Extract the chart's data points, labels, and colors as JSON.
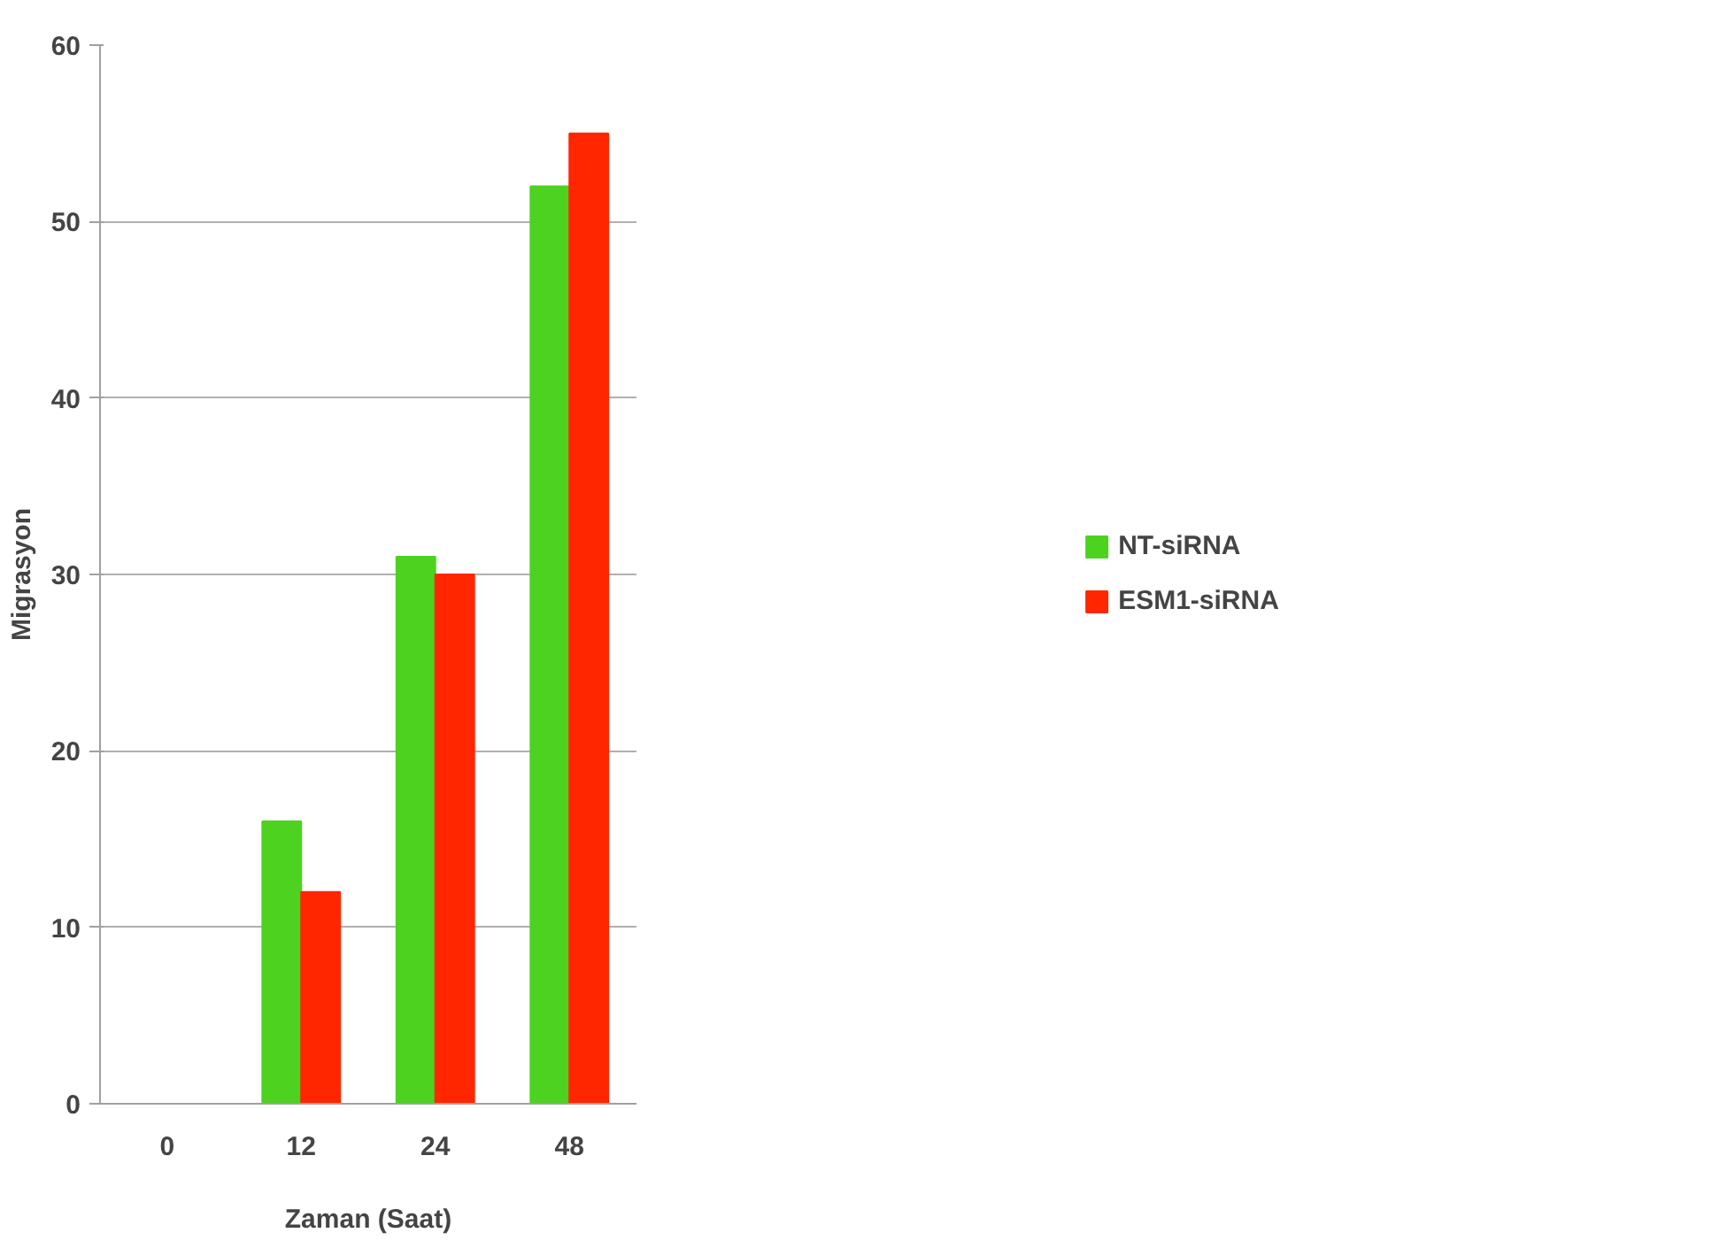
{
  "chart_data": {
    "type": "bar",
    "xlabel": "Zaman (Saat)",
    "ylabel": "Migrasyon",
    "categories": [
      "0",
      "12",
      "24",
      "48"
    ],
    "series": [
      {
        "name": "NT-siRNA",
        "color": "#4cd21f",
        "values": [
          0,
          16,
          31,
          52
        ]
      },
      {
        "name": "ESM1-siRNA",
        "color": "#ff2600",
        "values": [
          0,
          12,
          30,
          55
        ]
      }
    ],
    "ylim": [
      0,
      60
    ],
    "yticks": [
      0,
      10,
      20,
      30,
      40,
      50,
      60
    ],
    "grid": "y",
    "legend": "right"
  }
}
